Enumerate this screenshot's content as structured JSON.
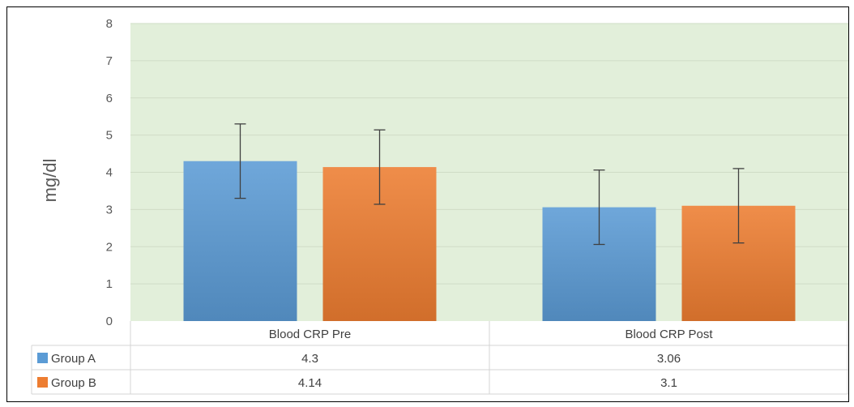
{
  "chart_data": {
    "type": "bar",
    "title": "",
    "ylabel": "mg/dl",
    "xlabel": "",
    "ylim": [
      0,
      8
    ],
    "yticks": [
      "0",
      "1",
      "2",
      "3",
      "4",
      "5",
      "6",
      "7",
      "8"
    ],
    "categories": [
      "Blood CRP Pre",
      "Blood CRP Post"
    ],
    "series": [
      {
        "name": "Group A",
        "values": [
          4.3,
          3.06
        ],
        "labels": [
          "4.3",
          "3.06"
        ],
        "error": [
          1.0,
          1.0
        ],
        "color": "#5B9BD5"
      },
      {
        "name": "Group B",
        "values": [
          4.14,
          3.1
        ],
        "labels": [
          "4.14",
          "3.1"
        ],
        "error": [
          1.0,
          1.0
        ],
        "color": "#ED7D31"
      }
    ],
    "grid": true,
    "plot_background": "#E2EFDA",
    "data_table": true,
    "legend": "in data table"
  }
}
